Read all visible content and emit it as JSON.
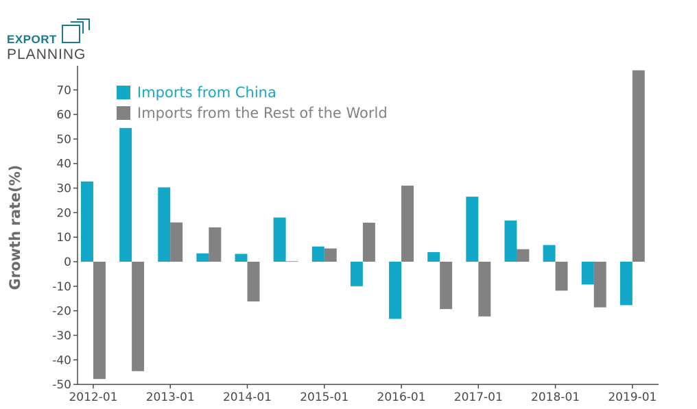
{
  "logo": {
    "line1": "EXPORT",
    "line2": "PLANNING",
    "icon": "logo-square-icon",
    "color_primary": "#1a7a8c",
    "color_secondary": "#4a4a4a"
  },
  "colors": {
    "china": "#14a8c8",
    "rest": "#828282",
    "axis": "#4a4a4a",
    "ylabel": "#6b6b6b"
  },
  "chart_data": {
    "type": "bar",
    "title": "",
    "xlabel": "",
    "ylabel": "Growth rate(%)",
    "ylim": [
      -50,
      80
    ],
    "yticks": [
      -50,
      -40,
      -30,
      -20,
      -10,
      0,
      10,
      20,
      30,
      40,
      50,
      60,
      70
    ],
    "xtick_labels": [
      "2012-01",
      "2013-01",
      "2014-01",
      "2015-01",
      "2016-01",
      "2017-01",
      "2018-01",
      "2019-01"
    ],
    "categories": [
      "2012-01",
      "2012-07",
      "2013-01",
      "2013-07",
      "2014-01",
      "2014-07",
      "2015-01",
      "2015-07",
      "2016-01",
      "2016-07",
      "2017-01",
      "2017-07",
      "2018-01",
      "2018-07",
      "2019-01"
    ],
    "legend_position": "top-left",
    "series": [
      {
        "name": "Imports from China",
        "values": [
          32.7,
          54.5,
          30.3,
          3.4,
          3.2,
          18.0,
          6.2,
          -10.0,
          -23.3,
          3.9,
          26.5,
          16.8,
          6.8,
          -9.3,
          -17.7
        ]
      },
      {
        "name": "Imports from the Rest of the World",
        "values": [
          -47.8,
          -44.6,
          16.0,
          14.0,
          -16.2,
          0.2,
          5.4,
          15.9,
          31.0,
          -19.3,
          -22.3,
          5.1,
          -11.8,
          -18.6,
          78.0
        ]
      }
    ]
  }
}
